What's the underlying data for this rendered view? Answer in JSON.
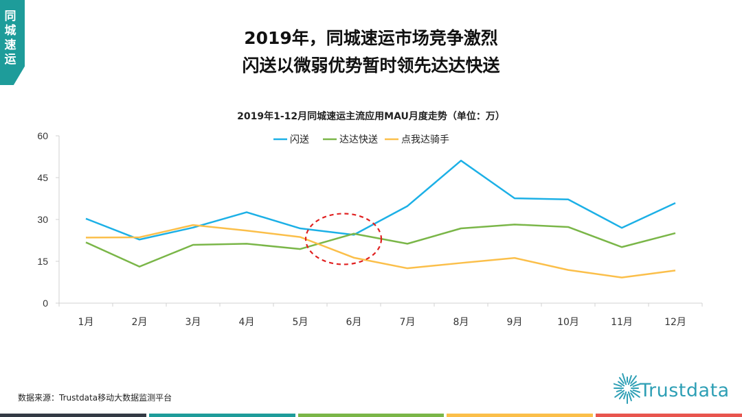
{
  "side_tab": {
    "label": "同城速运",
    "color": "#1e9c9a"
  },
  "headline": {
    "line1": "2019年，同城速运市场竞争激烈",
    "line2": "闪送以微弱优势暂时领先达达快送"
  },
  "chart_data": {
    "type": "line",
    "title": "2019年1-12月同城速运主流应用MAU月度走势（单位：万）",
    "categories": [
      "1月",
      "2月",
      "3月",
      "4月",
      "5月",
      "6月",
      "7月",
      "8月",
      "9月",
      "10月",
      "11月",
      "12月"
    ],
    "series": [
      {
        "name": "闪送",
        "color": "#1cb0e6",
        "values": [
          30.3,
          22.8,
          27.1,
          32.6,
          26.8,
          24.5,
          34.8,
          51.1,
          37.6,
          37.2,
          27.0,
          35.9
        ]
      },
      {
        "name": "达达快送",
        "color": "#7ab648",
        "values": [
          21.8,
          13.1,
          20.9,
          21.3,
          19.4,
          24.9,
          21.3,
          26.8,
          28.2,
          27.3,
          20.1,
          25.1
        ]
      },
      {
        "name": "点我达骑手",
        "color": "#fbbf4a",
        "values": [
          23.5,
          23.6,
          28.0,
          26.0,
          23.7,
          16.3,
          12.5,
          14.4,
          16.2,
          11.9,
          9.2,
          11.7
        ]
      }
    ],
    "yticks": [
      0,
      15,
      30,
      45,
      60
    ],
    "ylim": [
      0,
      60
    ],
    "legend": "top-center",
    "grid": false,
    "annotation": {
      "type": "ellipse",
      "style": "dashed",
      "color": "#e02020",
      "around_category": "6月"
    }
  },
  "source": "数据来源：Trustdata移动大数据监测平台",
  "logo": {
    "name": "Trustdata",
    "color": "#2e9fb5"
  },
  "footer_colors": [
    "#333a44",
    "#1e9c9a",
    "#7ab648",
    "#fbbf4a",
    "#e8554e"
  ]
}
